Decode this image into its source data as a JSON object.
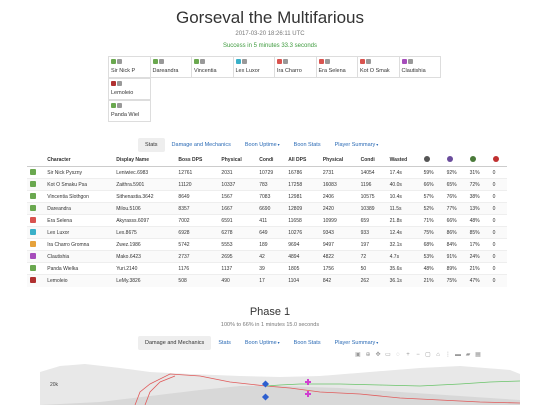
{
  "header": {
    "title": "Gorseval the Multifarious",
    "timestamp": "2017-03-20 18:26:11 UTC",
    "result": "Success in 5 minutes 33.3 seconds"
  },
  "players": [
    [
      {
        "name": "Sir Nick P",
        "color": "#6aa84f"
      },
      {
        "name": "Dareandra",
        "color": "#6aa84f"
      },
      {
        "name": "Vincentia",
        "color": "#6aa84f"
      },
      {
        "name": "Lex Luxor",
        "color": "#3ab0c8"
      },
      {
        "name": "Ira Charro",
        "color": "#d9534f"
      },
      {
        "name": "Era Selena",
        "color": "#d9534f"
      },
      {
        "name": "Kot O Smak",
        "color": "#d9534f"
      },
      {
        "name": "Clautishia",
        "color": "#a64dbb"
      }
    ],
    [
      {
        "name": "Lemoleio",
        "color": "#b03030"
      }
    ],
    [
      {
        "name": "Panda Wiel",
        "color": "#6aa84f"
      }
    ]
  ],
  "tabs1": [
    {
      "label": "Stats",
      "active": true,
      "caret": false
    },
    {
      "label": "Damage and Mechanics",
      "active": false,
      "caret": false
    },
    {
      "label": "Boon Uptime",
      "active": false,
      "caret": true
    },
    {
      "label": "Boon Stats",
      "active": false,
      "caret": false
    },
    {
      "label": "Player Summary",
      "active": false,
      "caret": true
    }
  ],
  "table": {
    "headers": [
      "",
      "Character",
      "Display Name",
      "Boss DPS",
      "Physical",
      "Condi",
      "All DPS",
      "Physical",
      "Condi",
      "Wasted",
      "",
      "",
      "",
      ""
    ],
    "rows": [
      {
        "color": "#6aa84f",
        "cells": [
          "Sir Nick Pyszny",
          "Leniwiec.6983",
          "12761",
          "2031",
          "10729",
          "16786",
          "2731",
          "14054",
          "17.4s",
          "59%",
          "92%",
          "31%",
          "0"
        ]
      },
      {
        "color": "#6aa84f",
        "cells": [
          "Kot O Smaku Psa",
          "Zaithra.5901",
          "11120",
          "10337",
          "783",
          "17258",
          "16083",
          "1196",
          "40.0s",
          "66%",
          "65%",
          "72%",
          "0"
        ]
      },
      {
        "color": "#6aa84f",
        "cells": [
          "Vincentia Slothgon",
          "Sithenastia.3642",
          "8649",
          "1567",
          "7083",
          "12981",
          "2406",
          "10575",
          "10.4s",
          "57%",
          "76%",
          "38%",
          "0"
        ]
      },
      {
        "color": "#6aa84f",
        "cells": [
          "Dareandra",
          "Milou.5106",
          "8357",
          "1667",
          "6690",
          "12809",
          "2420",
          "10389",
          "11.5s",
          "52%",
          "77%",
          "13%",
          "0"
        ]
      },
      {
        "color": "#d9534f",
        "cells": [
          "Era Selena",
          "Akyrasss.6097",
          "7002",
          "6591",
          "411",
          "11658",
          "10999",
          "659",
          "21.8s",
          "71%",
          "66%",
          "48%",
          "0"
        ]
      },
      {
        "color": "#3ab0c8",
        "cells": [
          "Lex Luxor",
          "Lex.8675",
          "6928",
          "6278",
          "649",
          "10276",
          "9343",
          "933",
          "12.4s",
          "75%",
          "86%",
          "85%",
          "0"
        ]
      },
      {
        "color": "#e6a23c",
        "cells": [
          "Ira Charro Gromna",
          "Zwez.1986",
          "5742",
          "5553",
          "189",
          "9694",
          "9497",
          "197",
          "32.1s",
          "68%",
          "84%",
          "17%",
          "0"
        ]
      },
      {
        "color": "#a64dbb",
        "cells": [
          "Clautishia",
          "Mako.6423",
          "2737",
          "2695",
          "42",
          "4894",
          "4822",
          "72",
          "4.7s",
          "53%",
          "91%",
          "24%",
          "0"
        ]
      },
      {
        "color": "#6aa84f",
        "cells": [
          "Panda Wielka",
          "Yuri.2140",
          "1176",
          "1137",
          "39",
          "1805",
          "1756",
          "50",
          "35.6s",
          "48%",
          "89%",
          "21%",
          "0"
        ]
      },
      {
        "color": "#b03030",
        "cells": [
          "Lemoleio",
          "LeMy.3826",
          "508",
          "490",
          "17",
          "1104",
          "842",
          "262",
          "36.1s",
          "21%",
          "75%",
          "47%",
          "0"
        ]
      }
    ]
  },
  "phase": {
    "title": "Phase 1",
    "subtitle": "100% to 66% in 1 minutes 15.0 seconds"
  },
  "tabs2": [
    {
      "label": "Damage and Mechanics",
      "active": true,
      "caret": false
    },
    {
      "label": "Stats",
      "active": false,
      "caret": false
    },
    {
      "label": "Boon Uptime",
      "active": false,
      "caret": true
    },
    {
      "label": "Boon Stats",
      "active": false,
      "caret": false
    },
    {
      "label": "Player Summary",
      "active": false,
      "caret": true
    }
  ],
  "chart": {
    "y_tick": "20k"
  },
  "icons": [
    "camera-icon",
    "zoom-icon",
    "pan-icon",
    "box-select-icon",
    "lasso-icon",
    "zoom-in-icon",
    "zoom-out-icon",
    "autoscale-icon",
    "reset-axes-icon",
    "spike-lines-icon",
    "hover-closest-icon",
    "hover-compare-icon",
    "plotly-logo-icon"
  ]
}
